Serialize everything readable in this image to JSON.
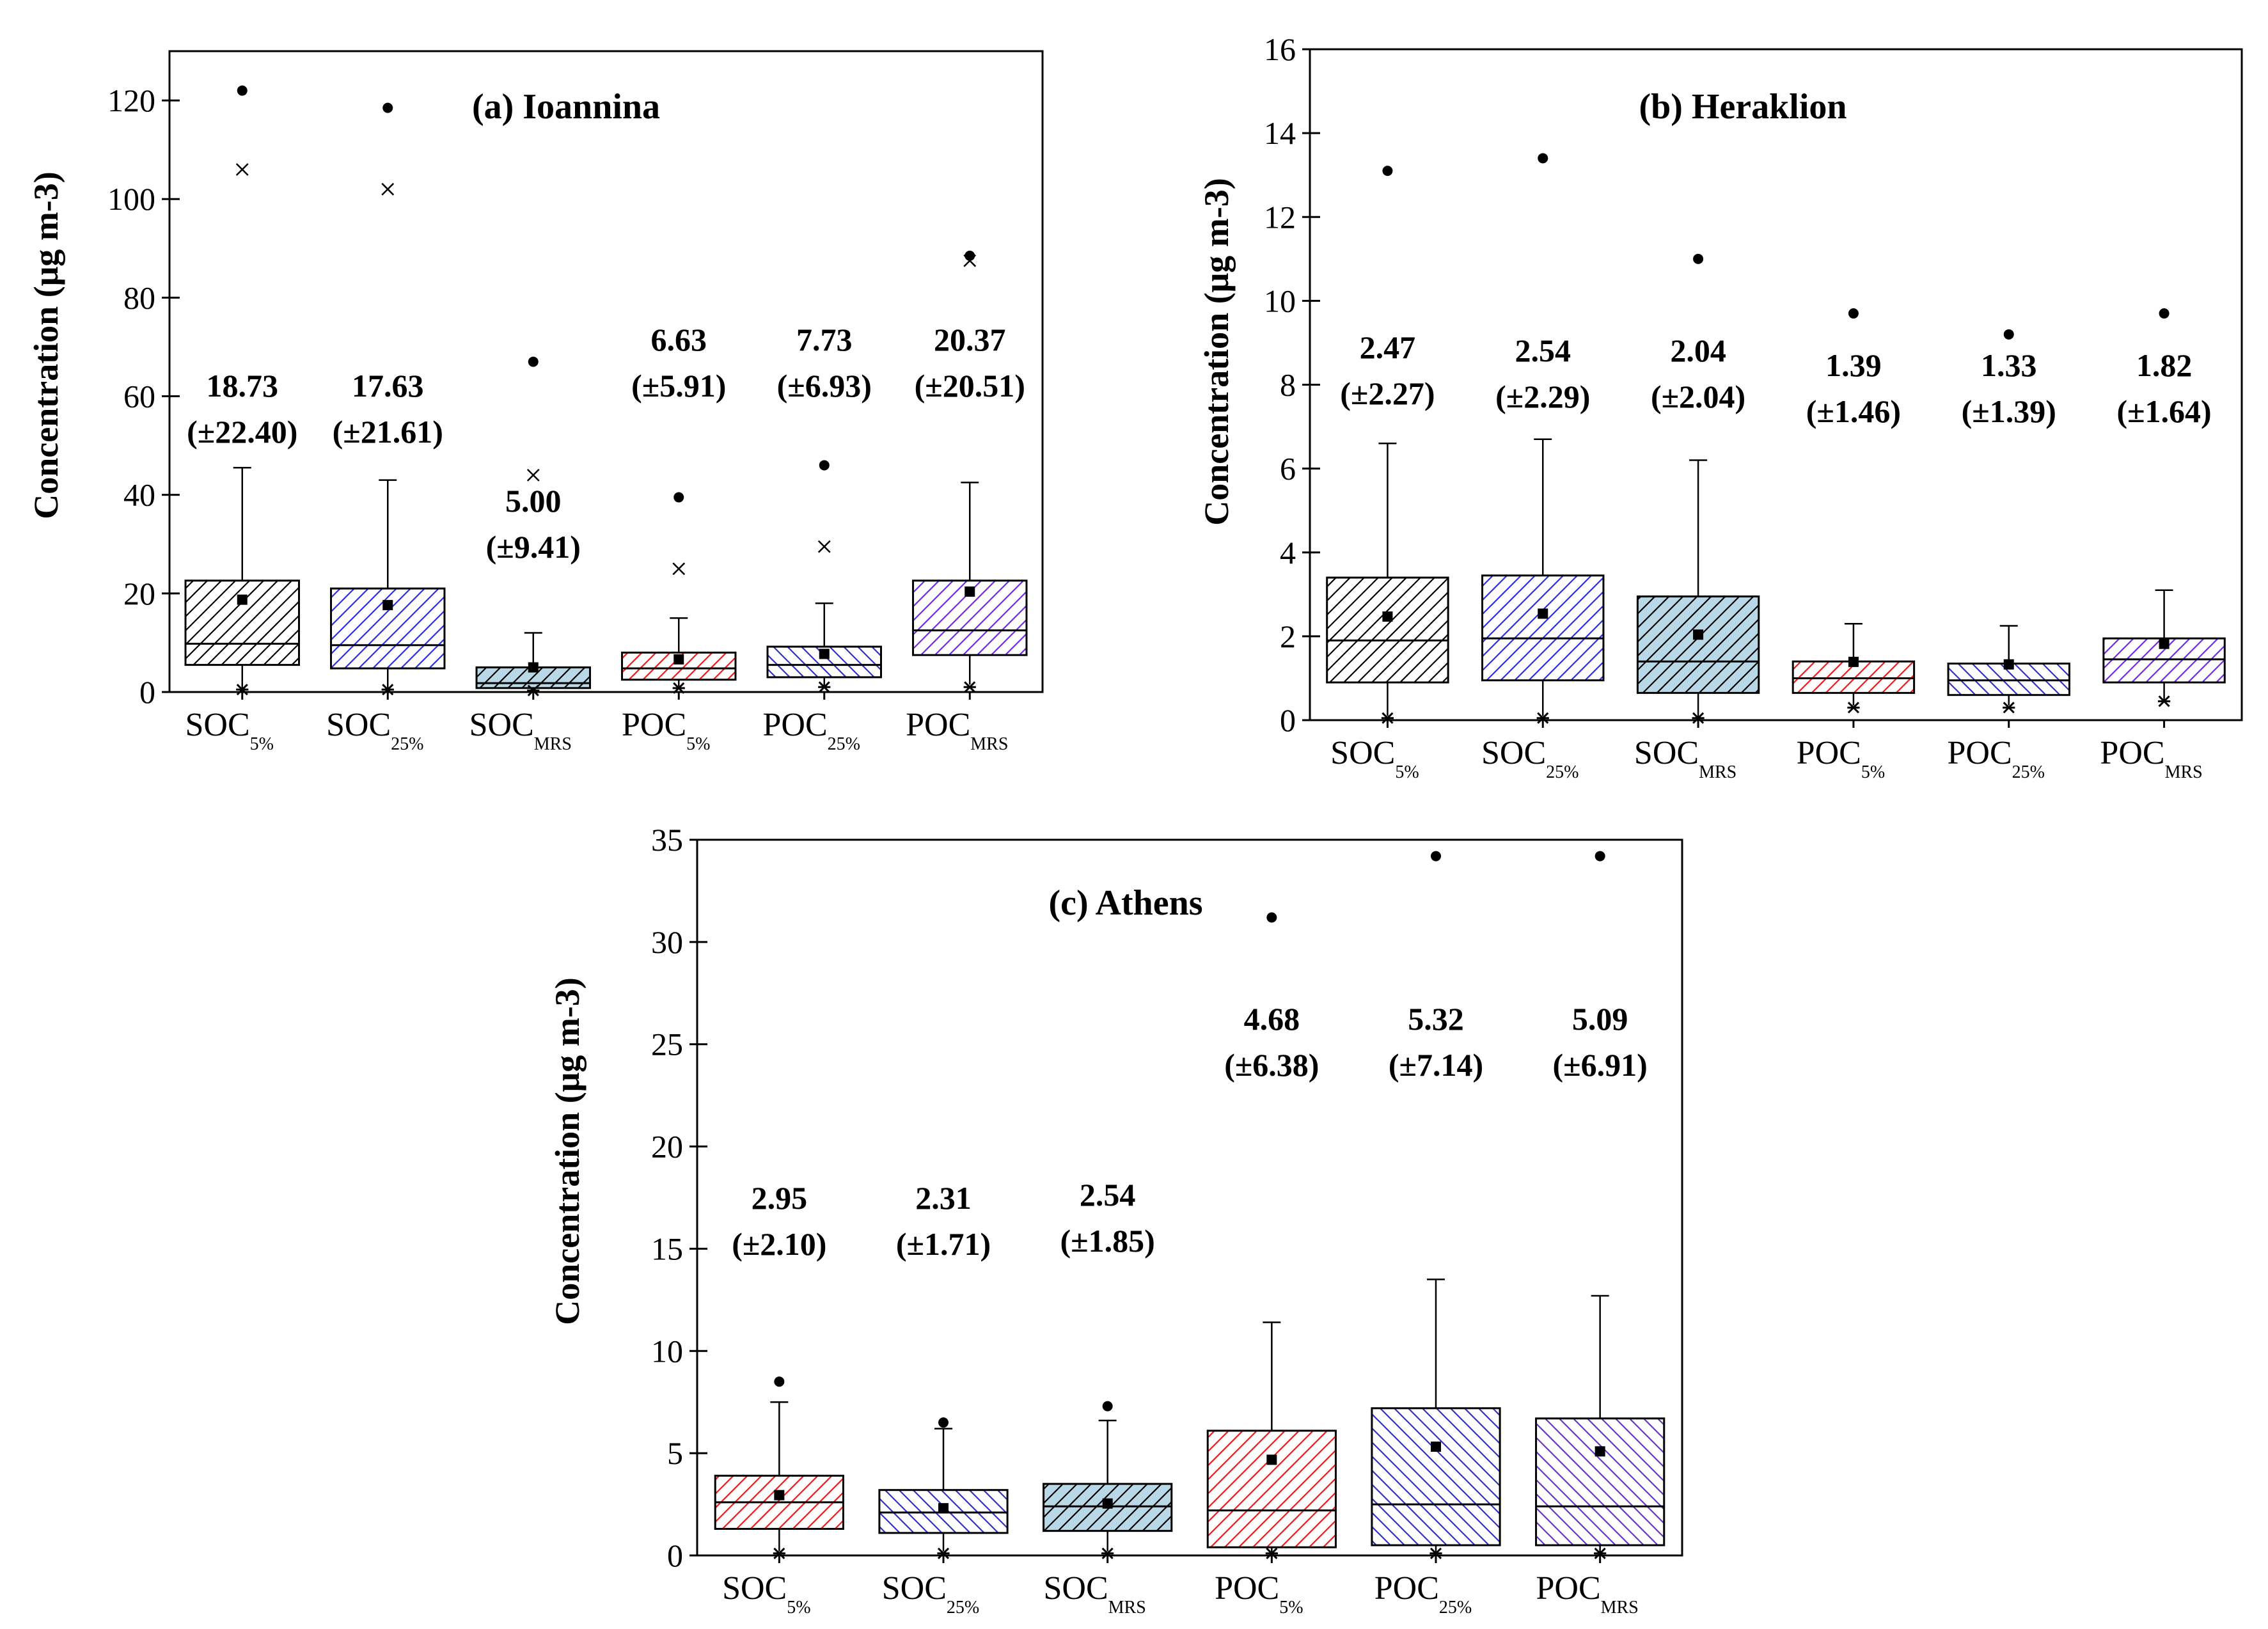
{
  "chart_data": [
    {
      "type": "box",
      "title": "(a) Ioannina",
      "ylabel": "Concentration (μg m-3)",
      "ylim": [
        0,
        130
      ],
      "yticks": [
        0,
        20,
        40,
        60,
        80,
        100,
        120
      ],
      "categories": [
        {
          "main": "SOC",
          "sub": "5%"
        },
        {
          "main": "SOC",
          "sub": "25%"
        },
        {
          "main": "SOC",
          "sub": "MRS"
        },
        {
          "main": "POC",
          "sub": "5%"
        },
        {
          "main": "POC",
          "sub": "25%"
        },
        {
          "main": "POC",
          "sub": "MRS"
        }
      ],
      "series": [
        {
          "q1": 5.5,
          "median": 9.8,
          "q3": 22.6,
          "whisker_low": 0.5,
          "whisker_high": 45.5,
          "mean": 18.73,
          "max": 122,
          "p99": 106,
          "min": 0.5,
          "mean_label": "18.73",
          "sd_label": "(±22.40)",
          "color": "#000000",
          "fill": "#ffffff",
          "hatch": "fwd"
        },
        {
          "q1": 4.8,
          "median": 9.5,
          "q3": 21.0,
          "whisker_low": 0.5,
          "whisker_high": 43.0,
          "mean": 17.63,
          "max": 118.5,
          "p99": 102,
          "min": 0.5,
          "mean_label": "17.63",
          "sd_label": "(±21.61)",
          "color": "#2f2fd8",
          "fill": "#ffffff",
          "hatch": "fwd"
        },
        {
          "q1": 0.8,
          "median": 1.8,
          "q3": 5.0,
          "whisker_low": 0.3,
          "whisker_high": 12.0,
          "mean": 5.0,
          "max": 67,
          "p99": 44,
          "min": 0.3,
          "mean_label": "5.00",
          "sd_label": "(±9.41)",
          "color": "#000000",
          "fill": "#b8d8e8",
          "hatch": "fwd"
        },
        {
          "q1": 2.5,
          "median": 4.8,
          "q3": 8.0,
          "whisker_low": 1.0,
          "whisker_high": 15.0,
          "mean": 6.63,
          "max": 39.5,
          "p99": 25,
          "min": 0.8,
          "mean_label": "6.63",
          "sd_label": "(±5.91)",
          "color": "#e02020",
          "fill": "#ffffff",
          "hatch": "fwd"
        },
        {
          "q1": 3.0,
          "median": 5.5,
          "q3": 9.2,
          "whisker_low": 1.2,
          "whisker_high": 18.0,
          "mean": 7.73,
          "max": 46,
          "p99": 29.5,
          "min": 1.0,
          "mean_label": "7.73",
          "sd_label": "(±6.93)",
          "color": "#2f2fd8",
          "fill": "#ffffff",
          "hatch": "back"
        },
        {
          "q1": 7.5,
          "median": 12.5,
          "q3": 22.6,
          "whisker_low": 1.5,
          "whisker_high": 42.5,
          "mean": 20.37,
          "max": 88.5,
          "p99": 87.5,
          "min": 1.0,
          "mean_label": "20.37",
          "sd_label": "(±20.51)",
          "color": "#6a2fd8",
          "fill": "#ffffff",
          "hatch": "fwd"
        }
      ]
    },
    {
      "type": "box",
      "title": "(b) Heraklion",
      "ylabel": "Concentration (μg m-3)",
      "ylim": [
        0,
        16
      ],
      "yticks": [
        0,
        2,
        4,
        6,
        8,
        10,
        12,
        14,
        16
      ],
      "categories": [
        {
          "main": "SOC",
          "sub": "5%"
        },
        {
          "main": "SOC",
          "sub": "25%"
        },
        {
          "main": "SOC",
          "sub": "MRS"
        },
        {
          "main": "POC",
          "sub": "5%"
        },
        {
          "main": "POC",
          "sub": "25%"
        },
        {
          "main": "POC",
          "sub": "MRS"
        }
      ],
      "series": [
        {
          "q1": 0.9,
          "median": 1.9,
          "q3": 3.4,
          "whisker_low": 0.1,
          "whisker_high": 6.6,
          "mean": 2.47,
          "max": 13.1,
          "p99": 13.1,
          "min": 0.05,
          "mean_label": "2.47",
          "sd_label": "(±2.27)",
          "color": "#000000",
          "fill": "#ffffff",
          "hatch": "fwd"
        },
        {
          "q1": 0.95,
          "median": 1.95,
          "q3": 3.45,
          "whisker_low": 0.1,
          "whisker_high": 6.7,
          "mean": 2.54,
          "max": 13.4,
          "p99": 13.4,
          "min": 0.05,
          "mean_label": "2.54",
          "sd_label": "(±2.29)",
          "color": "#2f2fd8",
          "fill": "#ffffff",
          "hatch": "fwd"
        },
        {
          "q1": 0.65,
          "median": 1.4,
          "q3": 2.95,
          "whisker_low": 0.05,
          "whisker_high": 6.2,
          "mean": 2.04,
          "max": 11.0,
          "p99": 11.0,
          "min": 0.05,
          "mean_label": "2.04",
          "sd_label": "(±2.04)",
          "color": "#000000",
          "fill": "#b8d8e8",
          "hatch": "fwd"
        },
        {
          "q1": 0.65,
          "median": 1.0,
          "q3": 1.4,
          "whisker_low": 0.35,
          "whisker_high": 2.3,
          "mean": 1.39,
          "max": 9.7,
          "p99": 9.7,
          "min": 0.3,
          "mean_label": "1.39",
          "sd_label": "(±1.46)",
          "color": "#e02020",
          "fill": "#ffffff",
          "hatch": "fwd"
        },
        {
          "q1": 0.6,
          "median": 0.95,
          "q3": 1.35,
          "whisker_low": 0.35,
          "whisker_high": 2.25,
          "mean": 1.33,
          "max": 9.2,
          "p99": 9.2,
          "min": 0.3,
          "mean_label": "1.33",
          "sd_label": "(±1.39)",
          "color": "#2f2fd8",
          "fill": "#ffffff",
          "hatch": "back"
        },
        {
          "q1": 0.9,
          "median": 1.45,
          "q3": 1.95,
          "whisker_low": 0.45,
          "whisker_high": 3.1,
          "mean": 1.82,
          "max": 9.7,
          "p99": 9.7,
          "min": 0.45,
          "mean_label": "1.82",
          "sd_label": "(±1.64)",
          "color": "#6a2fd8",
          "fill": "#ffffff",
          "hatch": "fwd"
        }
      ]
    },
    {
      "type": "box",
      "title": "(c) Athens",
      "ylabel": "Concentration (μg m-3)",
      "ylim": [
        0,
        35
      ],
      "yticks": [
        0,
        5,
        10,
        15,
        20,
        25,
        30,
        35
      ],
      "categories": [
        {
          "main": "SOC",
          "sub": "5%"
        },
        {
          "main": "SOC",
          "sub": "25%"
        },
        {
          "main": "SOC",
          "sub": "MRS"
        },
        {
          "main": "POC",
          "sub": "5%"
        },
        {
          "main": "POC",
          "sub": "25%"
        },
        {
          "main": "POC",
          "sub": "MRS"
        }
      ],
      "series": [
        {
          "q1": 1.3,
          "median": 2.6,
          "q3": 3.9,
          "whisker_low": 0.2,
          "whisker_high": 7.5,
          "mean": 2.95,
          "max": 8.5,
          "p99": 8.5,
          "min": 0.1,
          "mean_label": "2.95",
          "sd_label": "(±2.10)",
          "color": "#e02020",
          "fill": "#ffffff",
          "hatch": "fwd"
        },
        {
          "q1": 1.1,
          "median": 2.1,
          "q3": 3.2,
          "whisker_low": 0.2,
          "whisker_high": 6.2,
          "mean": 2.31,
          "max": 6.5,
          "p99": 6.5,
          "min": 0.1,
          "mean_label": "2.31",
          "sd_label": "(±1.71)",
          "color": "#2f2fd8",
          "fill": "#ffffff",
          "hatch": "back"
        },
        {
          "q1": 1.2,
          "median": 2.4,
          "q3": 3.5,
          "whisker_low": 0.2,
          "whisker_high": 6.6,
          "mean": 2.54,
          "max": 7.3,
          "p99": 7.3,
          "min": 0.1,
          "mean_label": "2.54",
          "sd_label": "(±1.85)",
          "color": "#000000",
          "fill": "#b8d8e8",
          "hatch": "fwd"
        },
        {
          "q1": 0.4,
          "median": 2.2,
          "q3": 6.1,
          "whisker_low": 0.1,
          "whisker_high": 11.4,
          "mean": 4.68,
          "max": 31.2,
          "p99": 31.2,
          "min": 0.1,
          "mean_label": "4.68",
          "sd_label": "(±6.38)",
          "color": "#e02020",
          "fill": "#ffffff",
          "hatch": "fwd"
        },
        {
          "q1": 0.5,
          "median": 2.5,
          "q3": 7.2,
          "whisker_low": 0.1,
          "whisker_high": 13.5,
          "mean": 5.32,
          "max": 34.2,
          "p99": 34.2,
          "min": 0.1,
          "mean_label": "5.32",
          "sd_label": "(±7.14)",
          "color": "#2f2fd8",
          "fill": "#ffffff",
          "hatch": "back"
        },
        {
          "q1": 0.5,
          "median": 2.4,
          "q3": 6.7,
          "whisker_low": 0.1,
          "whisker_high": 12.7,
          "mean": 5.09,
          "max": 34.2,
          "p99": 34.2,
          "min": 0.1,
          "mean_label": "5.09",
          "sd_label": "(±6.91)",
          "color": "#6a2fd8",
          "fill": "#ffffff",
          "hatch": "back"
        }
      ]
    }
  ]
}
